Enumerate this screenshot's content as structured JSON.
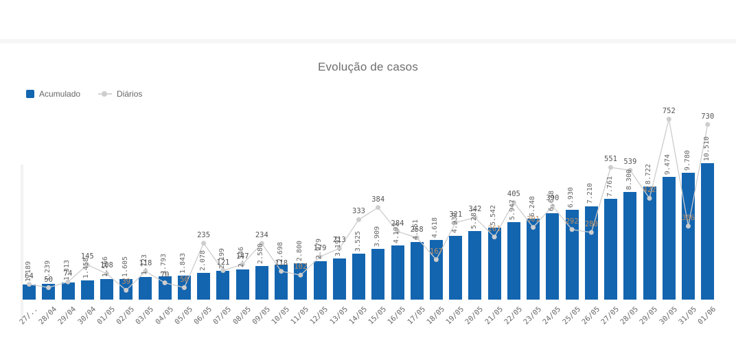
{
  "title": "Evolução de casos",
  "legend": {
    "acumulado": "Acumulado",
    "diarios": "Diários"
  },
  "colors": {
    "bar": "#1365b0",
    "line": "#cccccc",
    "marker": "#cdcdcd",
    "label_dark": "#545454",
    "label_in_bar": "#bf8f63",
    "axis_label": "#666666",
    "title": "#6e6e6e"
  },
  "chart_data": {
    "type": "bar",
    "title": "Evolução de casos",
    "xlabel": "",
    "ylabel": "",
    "grid": false,
    "legend_position": "top-left",
    "y_axis_visible": false,
    "categories": [
      "27/..",
      "28/04",
      "29/04",
      "30/04",
      "01/05",
      "02/05",
      "03/05",
      "04/05",
      "05/05",
      "06/05",
      "07/05",
      "08/05",
      "09/05",
      "10/05",
      "11/05",
      "12/05",
      "13/05",
      "14/05",
      "15/05",
      "16/05",
      "17/05",
      "18/05",
      "19/05",
      "20/05",
      "21/05",
      "22/05",
      "23/05",
      "24/05",
      "25/05",
      "26/05",
      "27/05",
      "28/05",
      "29/05",
      "30/05",
      "31/05",
      "01/06"
    ],
    "series": [
      {
        "name": "Acumulado",
        "type": "bar",
        "color": "#1365b0",
        "values": [
          1189,
          1239,
          1313,
          1458,
          1566,
          1605,
          1723,
          1793,
          1843,
          2078,
          2199,
          2346,
          2580,
          2698,
          2800,
          2979,
          3192,
          3525,
          3909,
          4193,
          4451,
          4618,
          4939,
          5281,
          5542,
          5947,
          6248,
          6638,
          6930,
          7210,
          7761,
          8300,
          8722,
          9474,
          9780,
          10510
        ]
      },
      {
        "name": "Diários",
        "type": "line",
        "color": "#cccccc",
        "values": [
          64,
          50,
          74,
          145,
          108,
          39,
          118,
          70,
          50,
          235,
          121,
          147,
          234,
          118,
          102,
          179,
          213,
          333,
          384,
          284,
          258,
          167,
          321,
          342,
          261,
          405,
          301,
          390,
          292,
          280,
          551,
          539,
          422,
          752,
          306,
          730
        ]
      }
    ],
    "number_format": "pt-BR thousands with dot, e.g. 10.510"
  }
}
